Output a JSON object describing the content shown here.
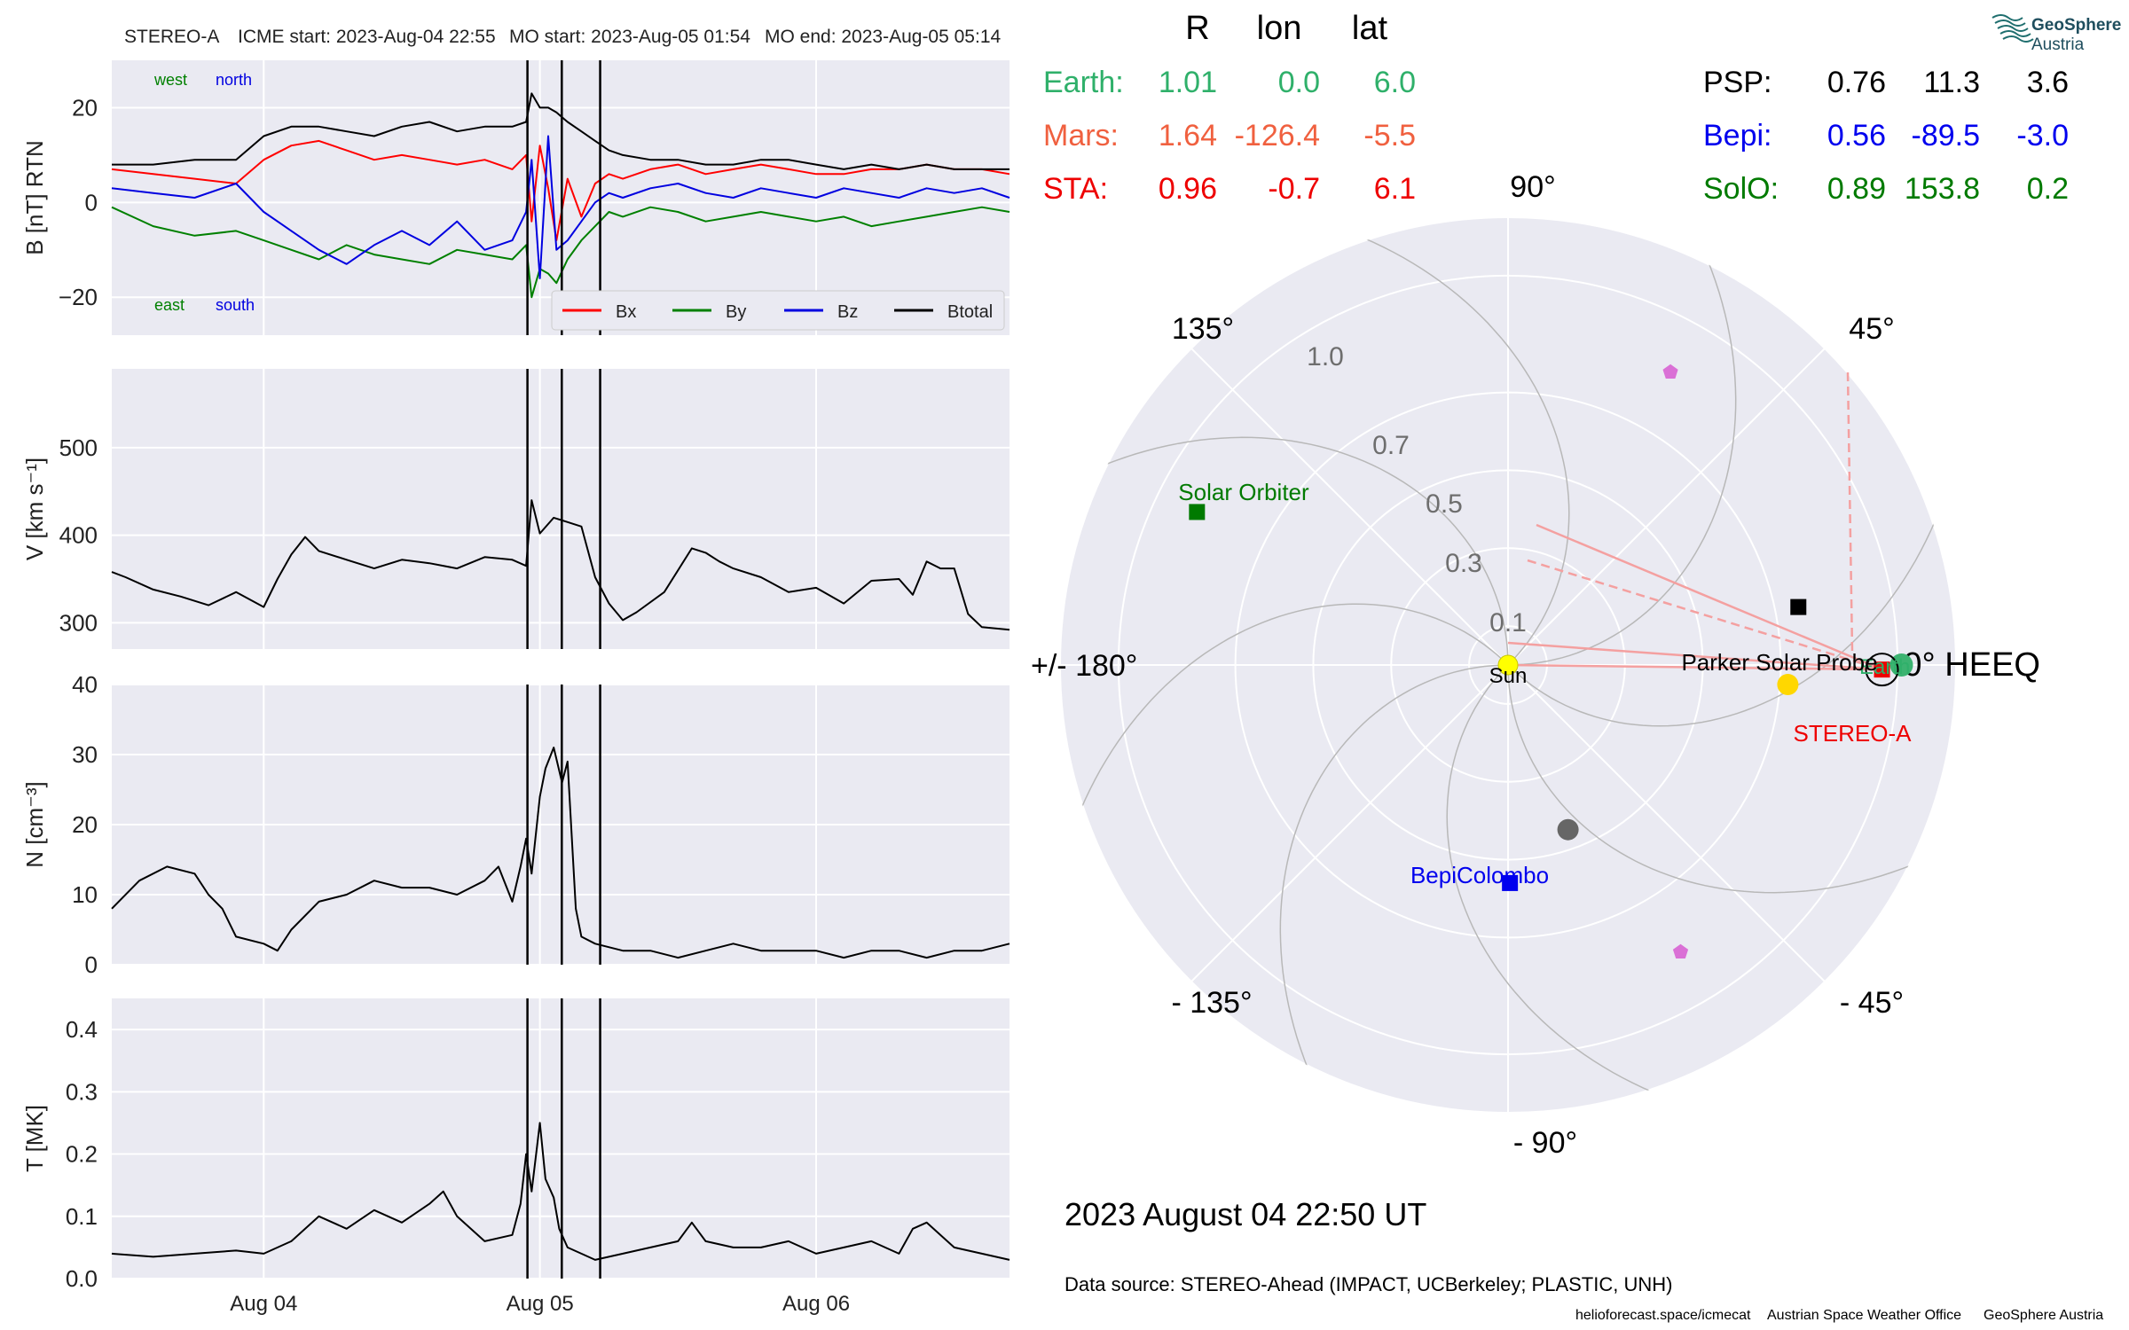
{
  "header": {
    "spacecraft": "STEREO-A",
    "icme_start": "ICME start: 2023-Aug-04 22:55",
    "mo_start": "MO start: 2023-Aug-05 01:54",
    "mo_end": "MO end: 2023-Aug-05 05:14"
  },
  "logo": {
    "line1": "GeoSphere",
    "line2": "Austria"
  },
  "datetime_label": "2023 August 04  22:50 UT",
  "data_source": "Data source: STEREO-Ahead (IMPACT, UCBerkeley; PLASTIC, UNH)",
  "footer": {
    "url": "helioforecast.space/icmecat",
    "office": "Austrian Space Weather Office",
    "org": "GeoSphere Austria"
  },
  "positions_table": {
    "headers": [
      "R",
      "lon",
      "lat"
    ],
    "left_rows": [
      {
        "name": "Earth:",
        "R": "1.01",
        "lon": "0.0",
        "lat": "6.0",
        "color": "#2fb06a"
      },
      {
        "name": "Mars:",
        "R": "1.64",
        "lon": "-126.4",
        "lat": "-5.5",
        "color": "#f0603f"
      },
      {
        "name": "STA:",
        "R": "0.96",
        "lon": "-0.7",
        "lat": "6.1",
        "color": "#ee0000"
      }
    ],
    "right_rows": [
      {
        "name": "PSP:",
        "R": "0.76",
        "lon": "11.3",
        "lat": "3.6",
        "color": "#000000"
      },
      {
        "name": "Bepi:",
        "R": "0.56",
        "lon": "-89.5",
        "lat": "-3.0",
        "color": "#0000ee"
      },
      {
        "name": "SolO:",
        "R": "0.89",
        "lon": "153.8",
        "lat": "0.2",
        "color": "#007a00"
      }
    ]
  },
  "chart_data": [
    {
      "type": "line",
      "panel": "magnetic_field",
      "ylabel": "B [nT] RTN",
      "ylim": [
        -28,
        30
      ],
      "yticks": [
        -20,
        0,
        20
      ],
      "ytick_labels": [
        "−20",
        "0",
        "20"
      ],
      "xlim_days": [
        3.45,
        6.7
      ],
      "x_ticks": [
        "Aug 04",
        "Aug 05",
        "Aug 06"
      ],
      "event_lines": [
        "2023-08-04 22:55",
        "2023-08-05 01:54",
        "2023-08-05 05:14"
      ],
      "corner_labels": {
        "top_left": "west",
        "top_right": "north",
        "bottom_left": "east",
        "bottom_right": "south"
      },
      "legend_position": "lower-right",
      "series": [
        {
          "name": "Bx",
          "color": "#ff0000",
          "x_days": [
            3.45,
            3.6,
            3.75,
            3.9,
            4.0,
            4.1,
            4.2,
            4.3,
            4.4,
            4.5,
            4.6,
            4.7,
            4.8,
            4.9,
            4.95,
            4.97,
            5.0,
            5.03,
            5.06,
            5.1,
            5.15,
            5.2,
            5.25,
            5.3,
            5.4,
            5.5,
            5.6,
            5.7,
            5.8,
            5.9,
            6.0,
            6.1,
            6.2,
            6.3,
            6.4,
            6.5,
            6.6,
            6.7
          ],
          "values": [
            7,
            6,
            5,
            4,
            9,
            12,
            13,
            11,
            9,
            10,
            9,
            8,
            9,
            7,
            10,
            -4,
            12,
            3,
            -8,
            5,
            -3,
            4,
            6,
            5,
            7,
            8,
            6,
            7,
            8,
            7,
            6,
            6,
            7,
            7,
            8,
            7,
            7,
            6
          ]
        },
        {
          "name": "By",
          "color": "#008000",
          "x_days": [
            3.45,
            3.6,
            3.75,
            3.9,
            4.0,
            4.1,
            4.2,
            4.3,
            4.4,
            4.5,
            4.6,
            4.7,
            4.8,
            4.9,
            4.95,
            4.97,
            5.0,
            5.03,
            5.06,
            5.1,
            5.15,
            5.2,
            5.25,
            5.3,
            5.4,
            5.5,
            5.6,
            5.7,
            5.8,
            5.9,
            6.0,
            6.1,
            6.2,
            6.3,
            6.4,
            6.5,
            6.6,
            6.7
          ],
          "values": [
            -1,
            -5,
            -7,
            -6,
            -8,
            -10,
            -12,
            -9,
            -11,
            -12,
            -13,
            -10,
            -11,
            -12,
            -9,
            -20,
            -14,
            -15,
            -17,
            -12,
            -8,
            -5,
            -2,
            -3,
            -1,
            -2,
            -4,
            -3,
            -2,
            -3,
            -4,
            -3,
            -5,
            -4,
            -3,
            -2,
            -1,
            -2
          ]
        },
        {
          "name": "Bz",
          "color": "#0000e0",
          "x_days": [
            3.45,
            3.6,
            3.75,
            3.9,
            4.0,
            4.1,
            4.2,
            4.3,
            4.4,
            4.5,
            4.6,
            4.7,
            4.8,
            4.9,
            4.95,
            4.97,
            5.0,
            5.03,
            5.06,
            5.1,
            5.15,
            5.2,
            5.25,
            5.3,
            5.4,
            5.5,
            5.6,
            5.7,
            5.8,
            5.9,
            6.0,
            6.1,
            6.2,
            6.3,
            6.4,
            6.5,
            6.6,
            6.7
          ],
          "values": [
            3,
            2,
            1,
            4,
            -2,
            -6,
            -10,
            -13,
            -9,
            -6,
            -9,
            -4,
            -10,
            -8,
            -2,
            9,
            -16,
            14,
            -10,
            -8,
            -4,
            0,
            2,
            1,
            3,
            4,
            2,
            1,
            3,
            2,
            1,
            3,
            2,
            1,
            3,
            2,
            3,
            1
          ]
        },
        {
          "name": "Btotal",
          "color": "#000000",
          "x_days": [
            3.45,
            3.6,
            3.75,
            3.9,
            4.0,
            4.1,
            4.2,
            4.3,
            4.4,
            4.5,
            4.6,
            4.7,
            4.8,
            4.9,
            4.95,
            4.97,
            5.0,
            5.03,
            5.06,
            5.1,
            5.15,
            5.2,
            5.25,
            5.3,
            5.4,
            5.5,
            5.6,
            5.7,
            5.8,
            5.9,
            6.0,
            6.1,
            6.2,
            6.3,
            6.4,
            6.5,
            6.6,
            6.7
          ],
          "values": [
            8,
            8,
            9,
            9,
            14,
            16,
            16,
            15,
            14,
            16,
            17,
            15,
            16,
            16,
            17,
            23,
            20,
            20,
            19,
            17,
            15,
            13,
            11,
            10,
            9,
            9,
            8,
            8,
            9,
            9,
            8,
            7,
            8,
            7,
            8,
            7,
            7,
            7
          ]
        }
      ]
    },
    {
      "type": "line",
      "panel": "speed",
      "ylabel": "V [km s⁻¹]",
      "ylim": [
        270,
        590
      ],
      "yticks": [
        300,
        400,
        500
      ],
      "ytick_labels": [
        "300",
        "400",
        "500"
      ],
      "xlim_days": [
        3.45,
        6.7
      ],
      "series": [
        {
          "name": "V",
          "color": "#000000",
          "x_days": [
            3.45,
            3.5,
            3.6,
            3.7,
            3.8,
            3.9,
            4.0,
            4.05,
            4.1,
            4.15,
            4.2,
            4.3,
            4.4,
            4.5,
            4.6,
            4.7,
            4.8,
            4.9,
            4.95,
            4.97,
            5.0,
            5.05,
            5.1,
            5.15,
            5.2,
            5.25,
            5.3,
            5.35,
            5.45,
            5.55,
            5.6,
            5.65,
            5.7,
            5.8,
            5.9,
            6.0,
            6.1,
            6.2,
            6.3,
            6.35,
            6.4,
            6.45,
            6.5,
            6.55,
            6.6,
            6.7
          ],
          "values": [
            358,
            352,
            338,
            330,
            320,
            335,
            318,
            350,
            378,
            398,
            382,
            372,
            362,
            372,
            368,
            362,
            375,
            372,
            365,
            440,
            402,
            420,
            415,
            410,
            352,
            322,
            303,
            312,
            335,
            385,
            380,
            370,
            362,
            352,
            335,
            340,
            322,
            348,
            350,
            332,
            370,
            362,
            362,
            310,
            295,
            292
          ]
        }
      ]
    },
    {
      "type": "line",
      "panel": "density",
      "ylabel": "N [cm⁻³]",
      "ylim": [
        0,
        40
      ],
      "yticks": [
        0,
        10,
        20,
        30,
        40
      ],
      "ytick_labels": [
        "0",
        "10",
        "20",
        "30",
        "40"
      ],
      "xlim_days": [
        3.45,
        6.7
      ],
      "series": [
        {
          "name": "N",
          "color": "#000000",
          "x_days": [
            3.45,
            3.55,
            3.65,
            3.75,
            3.8,
            3.85,
            3.9,
            4.0,
            4.05,
            4.1,
            4.2,
            4.3,
            4.4,
            4.5,
            4.6,
            4.7,
            4.8,
            4.85,
            4.9,
            4.93,
            4.95,
            4.97,
            5.0,
            5.02,
            5.05,
            5.08,
            5.1,
            5.13,
            5.15,
            5.2,
            5.3,
            5.4,
            5.5,
            5.6,
            5.7,
            5.8,
            5.9,
            6.0,
            6.1,
            6.2,
            6.3,
            6.4,
            6.5,
            6.6,
            6.7
          ],
          "values": [
            8,
            12,
            14,
            13,
            10,
            8,
            4,
            3,
            2,
            5,
            9,
            10,
            12,
            11,
            11,
            10,
            12,
            14,
            9,
            14,
            18,
            13,
            24,
            28,
            31,
            26,
            29,
            8,
            4,
            3,
            2,
            2,
            1,
            2,
            3,
            2,
            2,
            2,
            1,
            2,
            2,
            1,
            2,
            2,
            3
          ]
        }
      ]
    },
    {
      "type": "line",
      "panel": "temperature",
      "ylabel": "T [MK]",
      "ylim": [
        0,
        0.45
      ],
      "yticks": [
        0.0,
        0.1,
        0.2,
        0.3,
        0.4
      ],
      "ytick_labels": [
        "0.0",
        "0.1",
        "0.2",
        "0.3",
        "0.4"
      ],
      "xlim_days": [
        3.45,
        6.7
      ],
      "series": [
        {
          "name": "T",
          "color": "#000000",
          "x_days": [
            3.45,
            3.6,
            3.75,
            3.9,
            4.0,
            4.1,
            4.2,
            4.3,
            4.4,
            4.5,
            4.6,
            4.65,
            4.7,
            4.8,
            4.9,
            4.93,
            4.95,
            4.97,
            5.0,
            5.02,
            5.05,
            5.07,
            5.1,
            5.15,
            5.2,
            5.3,
            5.4,
            5.5,
            5.55,
            5.6,
            5.7,
            5.8,
            5.9,
            6.0,
            6.1,
            6.2,
            6.3,
            6.35,
            6.4,
            6.5,
            6.6,
            6.7
          ],
          "values": [
            0.04,
            0.035,
            0.04,
            0.045,
            0.04,
            0.06,
            0.1,
            0.08,
            0.11,
            0.09,
            0.12,
            0.14,
            0.1,
            0.06,
            0.07,
            0.12,
            0.2,
            0.14,
            0.25,
            0.16,
            0.13,
            0.08,
            0.05,
            0.04,
            0.03,
            0.04,
            0.05,
            0.06,
            0.09,
            0.06,
            0.05,
            0.05,
            0.06,
            0.04,
            0.05,
            0.06,
            0.04,
            0.08,
            0.09,
            0.05,
            0.04,
            0.03
          ]
        }
      ]
    },
    {
      "type": "scatter",
      "panel": "polar_orbit_plot",
      "frame_label": "0° HEEQ",
      "angle_labels": [
        {
          "deg": 0,
          "text": "0° HEEQ"
        },
        {
          "deg": 45,
          "text": "45°"
        },
        {
          "deg": 90,
          "text": "90°"
        },
        {
          "deg": 135,
          "text": "135°"
        },
        {
          "deg": 180,
          "text": "+/- 180°"
        },
        {
          "deg": -135,
          "text": "- 135°"
        },
        {
          "deg": -90,
          "text": "- 90°"
        },
        {
          "deg": -45,
          "text": "- 45°"
        }
      ],
      "radial_ticks": [
        {
          "r": 0.1,
          "label": "0.1"
        },
        {
          "r": 0.3,
          "label": "0.3"
        },
        {
          "r": 0.5,
          "label": "0.5"
        },
        {
          "r": 0.7,
          "label": "0.7"
        },
        {
          "r": 1.0,
          "label": "1.0"
        }
      ],
      "r_max": 1.15,
      "objects": [
        {
          "name": "Sun",
          "label": "Sun",
          "r": 0,
          "lon": 0,
          "marker": "circle",
          "color": "#ffff00"
        },
        {
          "name": "Earth",
          "label": "Earth",
          "r": 1.01,
          "lon": 0.0,
          "marker": "circle",
          "color": "#3cb371"
        },
        {
          "name": "STEREO-A",
          "label": "STEREO-A",
          "r": 0.96,
          "lon": -0.7,
          "marker": "square",
          "color": "#ee0000"
        },
        {
          "name": "Parker Solar Probe",
          "label": "Parker Solar Probe",
          "r": 0.76,
          "lon": 11.3,
          "marker": "square",
          "color": "#000000"
        },
        {
          "name": "BepiColombo",
          "label": "BepiColombo",
          "r": 0.56,
          "lon": -89.5,
          "marker": "square",
          "color": "#0000ee"
        },
        {
          "name": "Solar Orbiter",
          "label": "Solar Orbiter",
          "r": 0.89,
          "lon": 153.8,
          "marker": "square",
          "color": "#007a00"
        },
        {
          "name": "Venus",
          "label": "",
          "r": 0.72,
          "lon": -4,
          "marker": "circle",
          "color": "#ffd700"
        },
        {
          "name": "Mercury",
          "label": "",
          "r": 0.45,
          "lon": -70,
          "marker": "circle",
          "color": "#666666"
        },
        {
          "name": "Planet-marker-1",
          "label": "",
          "r": 0.86,
          "lon": 61,
          "marker": "pentagon",
          "color": "#da70d6"
        },
        {
          "name": "Planet-marker-2",
          "label": "",
          "r": 0.86,
          "lon": -59,
          "marker": "pentagon",
          "color": "#da70d6"
        }
      ]
    }
  ]
}
